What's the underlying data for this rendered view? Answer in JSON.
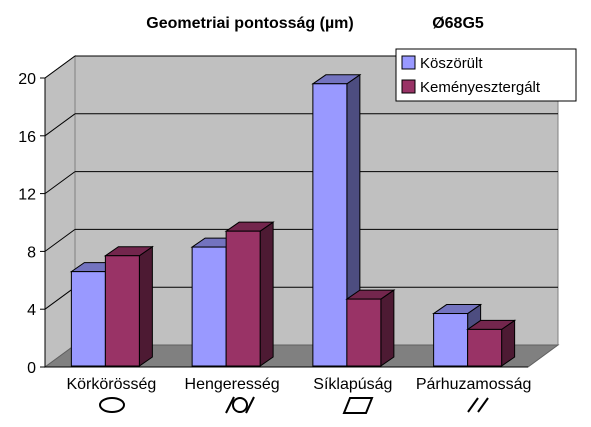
{
  "chart_data": {
    "type": "bar",
    "title": "Geometriai pontosság (µm)",
    "subtitle": "Ø68G5",
    "categories": [
      "Körkörösség",
      "Hengeresség",
      "Síklapúság",
      "Párhuzamosság"
    ],
    "category_symbols": [
      "circle-symbol",
      "cylindricity-symbol",
      "flatness-symbol",
      "parallelism-symbol"
    ],
    "series": [
      {
        "name": "Köszörült",
        "values": [
          6.6,
          8.3,
          19.6,
          3.7
        ],
        "color": "#9999ff"
      },
      {
        "name": "Keményesztergált",
        "values": [
          7.7,
          9.4,
          4.7,
          2.6
        ],
        "color": "#993366"
      }
    ],
    "ylim": [
      0,
      20
    ],
    "yticks": [
      "0",
      "4",
      "8",
      "12",
      "16",
      "20"
    ],
    "grid": true,
    "legend_position": "top-right",
    "background_color": "#c0c0c0",
    "floor_color": "#808080"
  }
}
